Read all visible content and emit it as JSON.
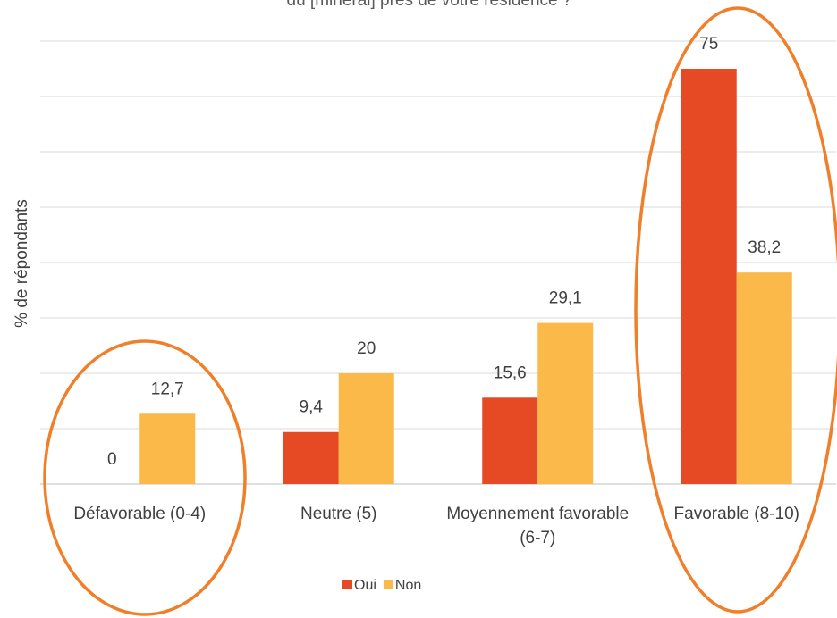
{
  "chart_data": {
    "type": "bar",
    "title": "du [minéral] près de votre résidence ?",
    "y_label": "% de répondants",
    "categories": [
      "Défavorable (0-4)",
      "Neutre (5)",
      "Moyennement favorable (6-7)",
      "Favorable (8-10)"
    ],
    "series": [
      {
        "name": "Oui",
        "color": "#e64a24",
        "values": [
          0,
          9.4,
          15.6,
          75
        ],
        "value_labels": [
          "0",
          "9,4",
          "15,6",
          "75"
        ]
      },
      {
        "name": "Non",
        "color": "#fbb94a",
        "values": [
          12.7,
          20,
          29.1,
          38.2
        ],
        "value_labels": [
          "12,7",
          "20",
          "29,1",
          "38,2"
        ]
      }
    ],
    "ylim": [
      0,
      80
    ],
    "yticks": [
      0,
      10,
      20,
      30,
      40,
      50,
      60,
      70,
      80
    ],
    "grid": true,
    "legend": "bottom"
  }
}
